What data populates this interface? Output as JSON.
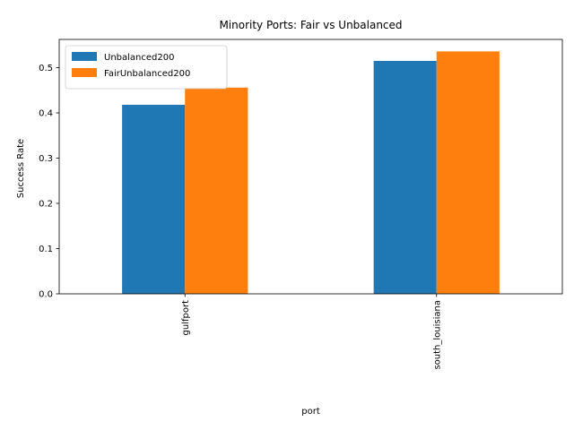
{
  "chart_data": {
    "type": "bar",
    "title": "Minority Ports: Fair vs Unbalanced",
    "xlabel": "port",
    "ylabel": "Success Rate",
    "categories": [
      "gulfport",
      "south_louisiana"
    ],
    "series": [
      {
        "name": "Unbalanced200",
        "values": [
          0.418,
          0.515
        ],
        "color": "#1f77b4"
      },
      {
        "name": "FairUnbalanced200",
        "values": [
          0.456,
          0.536
        ],
        "color": "#ff7f0e"
      }
    ],
    "ylim": [
      0,
      0.5625
    ],
    "yticks": [
      "0.0",
      "0.1",
      "0.2",
      "0.3",
      "0.4",
      "0.5"
    ],
    "ytick_values": [
      0.0,
      0.1,
      0.2,
      0.3,
      0.4,
      0.5
    ],
    "grid": false,
    "legend_position": "top-left"
  }
}
